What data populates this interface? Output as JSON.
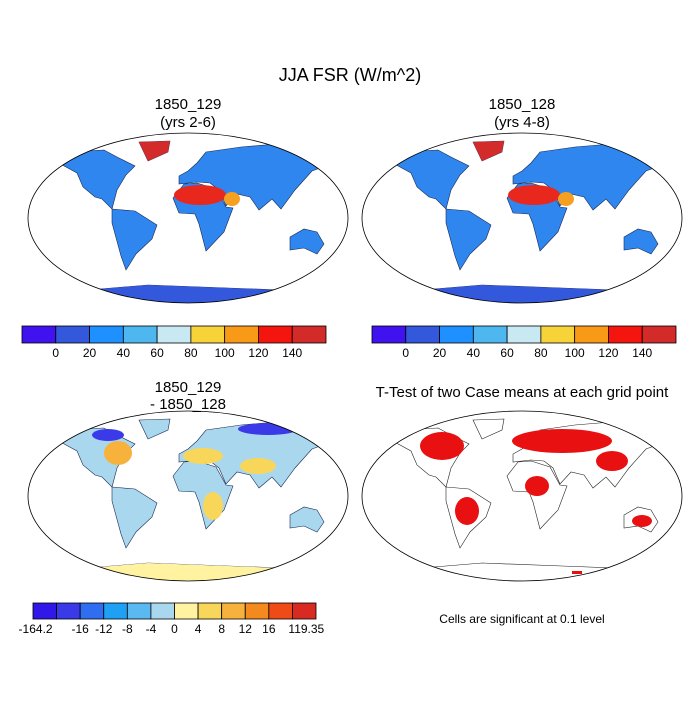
{
  "title": "JJA FSR (W/m^2)",
  "panels": [
    {
      "title": "1850_129",
      "subtitle": "(yrs 2-6)"
    },
    {
      "title": "1850_128",
      "subtitle": "(yrs 4-8)"
    },
    {
      "title": "1850_129",
      "subtitle": "- 1850_128"
    },
    {
      "title": "T-Test of two Case means at each grid point",
      "note": "Cells are significant at 0.1 level"
    }
  ],
  "colorbars": [
    {
      "colors": [
        "#4012f0",
        "#3358dc",
        "#1e90ff",
        "#4fb7f0",
        "#c8e8f2",
        "#f7d33a",
        "#f89a17",
        "#f5150f",
        "#d32a2a"
      ],
      "labels": [
        0,
        20,
        40,
        60,
        80,
        100,
        120,
        140
      ]
    },
    {
      "colors": [
        "#4012f0",
        "#3358dc",
        "#1e90ff",
        "#4fb7f0",
        "#c8e8f2",
        "#f7d33a",
        "#f89a17",
        "#f5150f",
        "#d32a2a"
      ],
      "labels": [
        0,
        20,
        40,
        60,
        80,
        100,
        120,
        140
      ]
    },
    {
      "colors": [
        "#3218e8",
        "#3a3ae8",
        "#2f6ef0",
        "#1ea0f5",
        "#5ab9f0",
        "#a9d8ee",
        "#fff2a0",
        "#f8d65a",
        "#f6b23a",
        "#f48a1e",
        "#f04a16",
        "#d92a22"
      ],
      "labels": [
        -164.2,
        -16,
        -12,
        -8,
        -4,
        0,
        4,
        8,
        12,
        16,
        119.35
      ]
    }
  ]
}
